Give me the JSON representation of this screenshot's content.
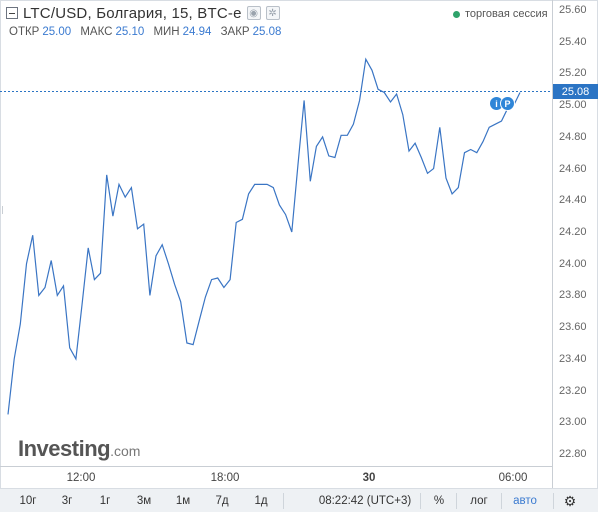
{
  "header": {
    "title": "LTC/USD, Болгария, 15, BTC-e",
    "session_text": "торговая сессия",
    "ohlc": [
      {
        "label": "ОТКР",
        "value": "25.00"
      },
      {
        "label": "МАКС",
        "value": "25.10"
      },
      {
        "label": "МИН",
        "value": "24.94"
      },
      {
        "label": "ЗАКР",
        "value": "25.08"
      }
    ]
  },
  "price_tag": "25.08",
  "badges": [
    "i",
    "P"
  ],
  "logo": {
    "main": "Investing",
    "domain": ".com"
  },
  "colors": {
    "line": "#3a75c4",
    "accent": "#2b74c4",
    "session_dot": "#2fa36b"
  },
  "chart_data": {
    "type": "line",
    "y_ticks": [
      "25.60",
      "25.40",
      "25.20",
      "25.00",
      "24.80",
      "24.60",
      "24.40",
      "24.20",
      "24.00",
      "23.80",
      "23.60",
      "23.40",
      "23.20",
      "23.00",
      "22.80"
    ],
    "x_ticks": [
      "12:00",
      "18:00",
      "30",
      "06:00"
    ],
    "ylim": [
      22.8,
      25.6
    ],
    "last_price": 25.08,
    "values": [
      23.05,
      23.4,
      23.62,
      24.0,
      24.18,
      23.8,
      23.85,
      24.02,
      23.8,
      23.86,
      23.47,
      23.4,
      23.74,
      24.1,
      23.9,
      23.94,
      24.56,
      24.3,
      24.5,
      24.42,
      24.48,
      24.22,
      24.25,
      23.8,
      24.05,
      24.12,
      24.0,
      23.87,
      23.76,
      23.5,
      23.49,
      23.64,
      23.79,
      23.9,
      23.91,
      23.85,
      23.9,
      24.26,
      24.28,
      24.44,
      24.5,
      24.5,
      24.5,
      24.48,
      24.37,
      24.31,
      24.2,
      24.62,
      25.03,
      24.52,
      24.74,
      24.8,
      24.68,
      24.67,
      24.81,
      24.81,
      24.88,
      25.03,
      25.29,
      25.22,
      25.1,
      25.08,
      25.02,
      25.07,
      24.94,
      24.71,
      24.76,
      24.67,
      24.57,
      24.6,
      24.86,
      24.54,
      24.44,
      24.48,
      24.7,
      24.72,
      24.7,
      24.77,
      24.86,
      24.88,
      24.9,
      24.98,
      25.0,
      25.08
    ]
  },
  "bottombar": {
    "periods": [
      "10г",
      "3г",
      "1г",
      "3м",
      "1м",
      "7д",
      "1д"
    ],
    "time": "08:22:42 (UTC+3)",
    "percent": "%",
    "log": "лог",
    "auto": "авто",
    "settings_icon": "gear-icon"
  }
}
